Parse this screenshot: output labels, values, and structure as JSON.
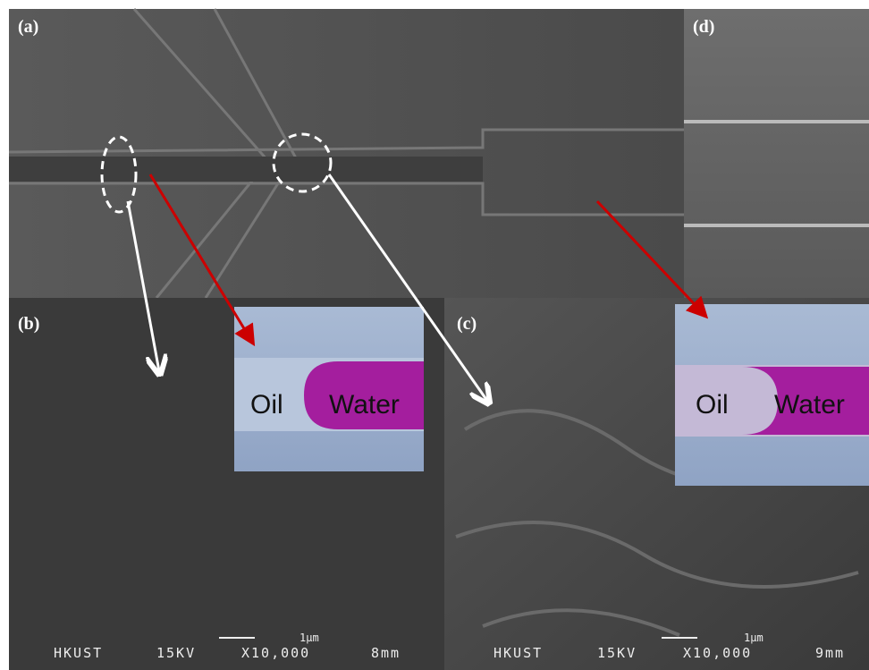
{
  "panels": [
    {
      "label": "(a)"
    },
    {
      "label": "(b)"
    },
    {
      "label": "(c)"
    },
    {
      "label": "(d)"
    }
  ],
  "insets": [
    {
      "left": "Oil",
      "right": "Water"
    },
    {
      "left": "Oil",
      "right": "Water"
    }
  ],
  "scale_bars": [
    {
      "scale": "1μm",
      "site": "HKUST",
      "voltage": "15KV",
      "magnification": "X10,000",
      "distance": "8mm"
    },
    {
      "scale": "1μm",
      "site": "HKUST",
      "voltage": "15KV",
      "magnification": "X10,000",
      "distance": "9mm"
    }
  ]
}
